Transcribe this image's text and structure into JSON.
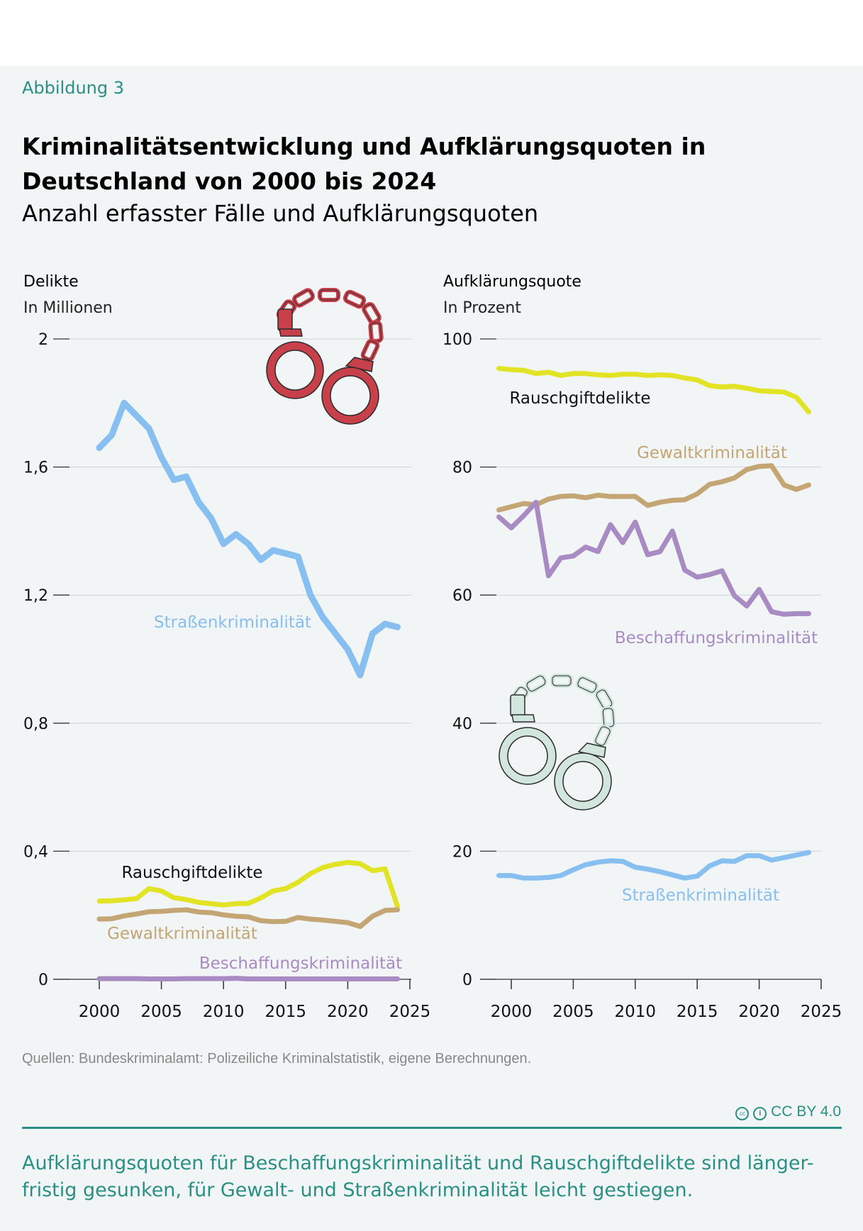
{
  "header": {
    "figure_label": "Abbildung 3",
    "title": "Kriminalitätsentwicklung und Aufklärungsquoten in Deutschland von 2000 bis 2024",
    "subtitle": "Anzahl erfasster Fälle und Aufklärungsquoten"
  },
  "footer": {
    "source": "Quellen: Bundeskriminalamt: Polizeiliche Kriminalstatistik, eigene Berechnungen.",
    "license": "CC BY 4.0",
    "license_icons": [
      "cc-icon",
      "by-attribution-icon"
    ],
    "takeaway": "Aufklärungsquoten für Beschaffungskriminalität und Rauschgiftdelikte sind länger-fristig gesunken, für Gewalt- und Straßenkriminalität leicht gestiegen."
  },
  "colors": {
    "background": "#f2f5f6",
    "accent": "#2a8f84",
    "Straßenkriminalität": "#86bff0",
    "Rauschgiftdelikte": "#e3e325",
    "Gewaltkriminalität": "#c4a574",
    "Beschaffungskriminalität": "#a98bc4",
    "handcuffs_left": "#c8404a",
    "handcuffs_right": "#d2e6de"
  },
  "icons": [
    "handcuffs-icon-red",
    "handcuffs-icon-green"
  ],
  "chart_data": [
    {
      "type": "line",
      "ylabel": "Delikte",
      "yunit": "In Millionen",
      "ylim": [
        0,
        2
      ],
      "yticks": [
        0,
        0.4,
        0.8,
        1.2,
        1.6,
        2
      ],
      "ytick_labels": [
        "0",
        "0,4",
        "0,8",
        "1,2",
        "1,6",
        "2"
      ],
      "xlim": [
        2000,
        2025
      ],
      "xticks": [
        2000,
        2005,
        2010,
        2015,
        2020,
        2025
      ],
      "xtick_labels": [
        "2000",
        "2005",
        "2010",
        "2015",
        "2020",
        "2025"
      ],
      "grid": true,
      "legend": "inline labels",
      "x": [
        2000,
        2001,
        2002,
        2003,
        2004,
        2005,
        2006,
        2007,
        2008,
        2009,
        2010,
        2011,
        2012,
        2013,
        2014,
        2015,
        2016,
        2017,
        2018,
        2019,
        2020,
        2021,
        2022,
        2023,
        2024
      ],
      "series": [
        {
          "name": "Straßenkriminalität",
          "values": [
            1.66,
            1.7,
            1.8,
            1.76,
            1.72,
            1.63,
            1.56,
            1.57,
            1.49,
            1.44,
            1.36,
            1.39,
            1.36,
            1.31,
            1.34,
            1.33,
            1.32,
            1.2,
            1.13,
            1.08,
            1.03,
            0.95,
            1.08,
            1.11,
            1.1
          ]
        },
        {
          "name": "Rauschgiftdelikte",
          "values": [
            0.244,
            0.245,
            0.248,
            0.252,
            0.283,
            0.276,
            0.255,
            0.249,
            0.24,
            0.236,
            0.232,
            0.236,
            0.237,
            0.254,
            0.276,
            0.283,
            0.303,
            0.33,
            0.349,
            0.359,
            0.365,
            0.361,
            0.339,
            0.345,
            0.228
          ]
        },
        {
          "name": "Gewaltkriminalität",
          "values": [
            0.188,
            0.189,
            0.198,
            0.204,
            0.211,
            0.212,
            0.215,
            0.217,
            0.21,
            0.208,
            0.201,
            0.197,
            0.195,
            0.183,
            0.18,
            0.181,
            0.193,
            0.188,
            0.185,
            0.181,
            0.177,
            0.165,
            0.197,
            0.215,
            0.217
          ]
        },
        {
          "name": "Beschaffungskriminalität",
          "values": [
            0.002,
            0.002,
            0.002,
            0.002,
            0.001,
            0.001,
            0.001,
            0.002,
            0.002,
            0.002,
            0.002,
            0.003,
            0.001,
            0.001,
            0.001,
            0.001,
            0.001,
            0.001,
            0.001,
            0.001,
            0.001,
            0.001,
            0.001,
            0.001,
            0.001
          ]
        }
      ]
    },
    {
      "type": "line",
      "ylabel": "Aufklärungsquote",
      "yunit": "In Prozent",
      "ylim": [
        0,
        100
      ],
      "yticks": [
        0,
        20,
        40,
        60,
        80,
        100
      ],
      "ytick_labels": [
        "0",
        "20",
        "40",
        "60",
        "80",
        "100"
      ],
      "xlim": [
        1999,
        2025
      ],
      "xticks": [
        2000,
        2005,
        2010,
        2015,
        2020,
        2025
      ],
      "xtick_labels": [
        "2000",
        "2005",
        "2010",
        "2015",
        "2020",
        "2025"
      ],
      "grid": true,
      "legend": "inline labels",
      "x": [
        1999,
        2000,
        2001,
        2002,
        2003,
        2004,
        2005,
        2006,
        2007,
        2008,
        2009,
        2010,
        2011,
        2012,
        2013,
        2014,
        2015,
        2016,
        2017,
        2018,
        2019,
        2020,
        2021,
        2022,
        2023,
        2024
      ],
      "series": [
        {
          "name": "Rauschgiftdelikte",
          "values": [
            95.4,
            95.2,
            95.1,
            94.6,
            94.8,
            94.3,
            94.6,
            94.6,
            94.4,
            94.3,
            94.5,
            94.5,
            94.3,
            94.4,
            94.3,
            93.9,
            93.6,
            92.7,
            92.5,
            92.6,
            92.3,
            91.9,
            91.8,
            91.7,
            90.9,
            88.6
          ]
        },
        {
          "name": "Gewaltkriminalität",
          "values": [
            73.3,
            73.8,
            74.3,
            74.1,
            75.0,
            75.4,
            75.5,
            75.2,
            75.6,
            75.4,
            75.4,
            75.4,
            74.0,
            74.5,
            74.8,
            74.9,
            75.8,
            77.3,
            77.7,
            78.3,
            79.6,
            80.1,
            80.2,
            77.2,
            76.5,
            77.2
          ]
        },
        {
          "name": "Beschaffungskriminalität",
          "values": [
            72.2,
            70.5,
            72.4,
            74.5,
            63.0,
            65.8,
            66.1,
            67.5,
            66.8,
            71.0,
            68.2,
            71.4,
            66.3,
            66.8,
            70.0,
            63.9,
            62.8,
            63.2,
            63.8,
            59.9,
            58.3,
            60.9,
            57.4,
            57.0,
            57.1,
            57.1
          ]
        },
        {
          "name": "Straßenkriminalität",
          "values": [
            16.2,
            16.2,
            15.8,
            15.8,
            15.9,
            16.2,
            17.1,
            17.9,
            18.3,
            18.5,
            18.4,
            17.5,
            17.2,
            16.8,
            16.3,
            15.8,
            16.1,
            17.7,
            18.5,
            18.4,
            19.3,
            19.3,
            18.6,
            19.0,
            19.4,
            19.8
          ]
        }
      ]
    }
  ]
}
